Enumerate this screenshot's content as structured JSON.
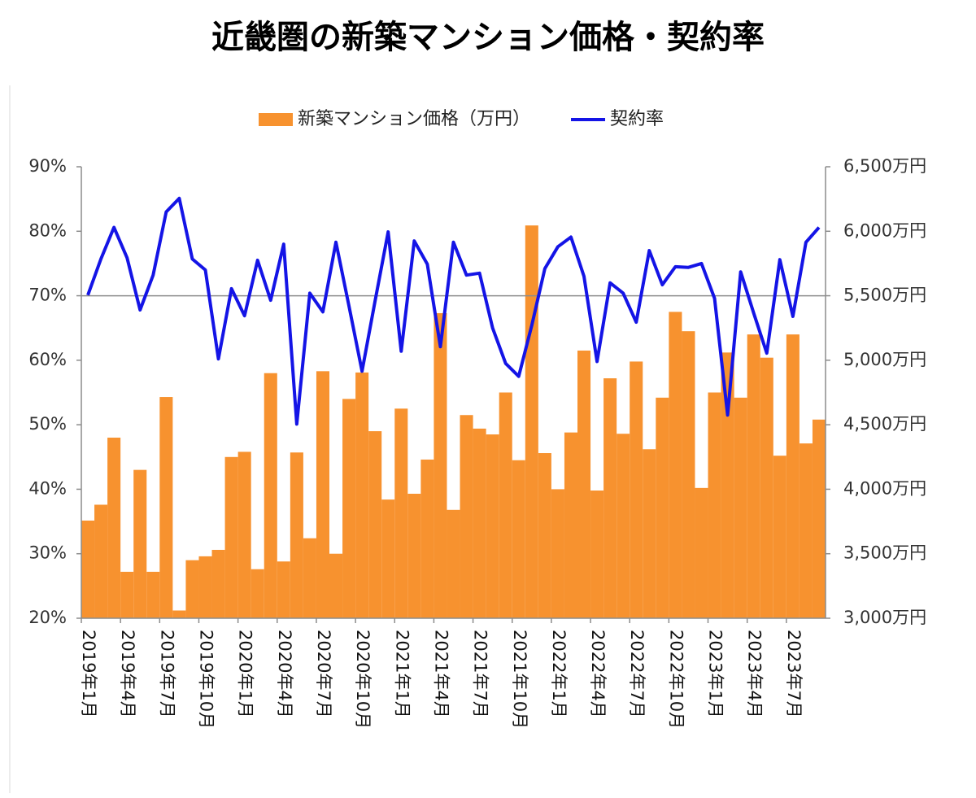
{
  "chart_data": {
    "type": "combo",
    "title": "近畿圏の新築マンション価格・契約率",
    "categories": [
      "2019年1月",
      null,
      null,
      "2019年4月",
      null,
      null,
      "2019年7月",
      null,
      null,
      "2019年10月",
      null,
      null,
      "2020年1月",
      null,
      null,
      "2020年4月",
      null,
      null,
      "2020年7月",
      null,
      null,
      "2020年10月",
      null,
      null,
      "2021年1月",
      null,
      null,
      "2021年4月",
      null,
      null,
      "2021年7月",
      null,
      null,
      "2021年10月",
      null,
      null,
      "2022年1月",
      null,
      null,
      "2022年4月",
      null,
      null,
      "2022年7月",
      null,
      null,
      "2022年10月",
      null,
      null,
      "2023年1月",
      null,
      null,
      "2023年4月",
      null,
      null,
      "2023年7月",
      null,
      null
    ],
    "series": [
      {
        "name": "新築マンション価格（万円）",
        "type": "bar",
        "axis": "y2",
        "color": "#f7922f",
        "values": [
          3757,
          3880,
          4400,
          3360,
          4150,
          3360,
          4715,
          3060,
          3450,
          3480,
          3530,
          4250,
          4290,
          3380,
          4900,
          3440,
          4285,
          3620,
          4915,
          3500,
          4700,
          4905,
          4450,
          3920,
          4625,
          3965,
          4230,
          5365,
          3840,
          4575,
          4470,
          4425,
          4750,
          4225,
          6045,
          4280,
          4000,
          4440,
          5075,
          3990,
          4860,
          4430,
          4990,
          4310,
          4710,
          5375,
          5225,
          4010,
          4750,
          5060,
          4710,
          5200,
          5020,
          4260,
          5200,
          4355,
          4540
        ]
      },
      {
        "name": "契約率",
        "type": "line",
        "axis": "y",
        "color": "#1414e6",
        "values": [
          70.1,
          75.7,
          80.6,
          75.9,
          67.8,
          73.2,
          83.0,
          85.1,
          75.7,
          74.0,
          60.2,
          71.1,
          66.9,
          75.5,
          69.3,
          78.0,
          50.1,
          70.4,
          67.5,
          78.3,
          68.4,
          58.3,
          69.2,
          79.9,
          61.4,
          78.5,
          74.9,
          62.1,
          78.3,
          73.2,
          73.5,
          65.0,
          59.5,
          57.5,
          65.4,
          74.2,
          77.6,
          79.1,
          73.0,
          59.8,
          72.0,
          70.4,
          65.9,
          77.0,
          71.7,
          74.5,
          74.4,
          75.0,
          69.6,
          51.5,
          73.7,
          67.3,
          61.1,
          75.6,
          66.8,
          78.3,
          80.6
        ]
      }
    ],
    "ylim": [
      20,
      90
    ],
    "yticks": [
      {
        "value": 20,
        "label": "20%"
      },
      {
        "value": 30,
        "label": "30%"
      },
      {
        "value": 40,
        "label": "40%"
      },
      {
        "value": 50,
        "label": "50%"
      },
      {
        "value": 60,
        "label": "60%"
      },
      {
        "value": 70,
        "label": "70%"
      },
      {
        "value": 80,
        "label": "80%"
      },
      {
        "value": 90,
        "label": "90%"
      }
    ],
    "y2lim": [
      3000,
      6500
    ],
    "y2ticks": [
      {
        "value": 3000,
        "label": "3,000万円"
      },
      {
        "value": 3500,
        "label": "3,500万円"
      },
      {
        "value": 4000,
        "label": "4,000万円"
      },
      {
        "value": 4500,
        "label": "4,500万円"
      },
      {
        "value": 5000,
        "label": "5,000万円"
      },
      {
        "value": 5500,
        "label": "5,500万円"
      },
      {
        "value": 6000,
        "label": "6,000万円"
      },
      {
        "value": 6500,
        "label": "6,500万円"
      }
    ],
    "hline": 70,
    "legend": "top"
  }
}
